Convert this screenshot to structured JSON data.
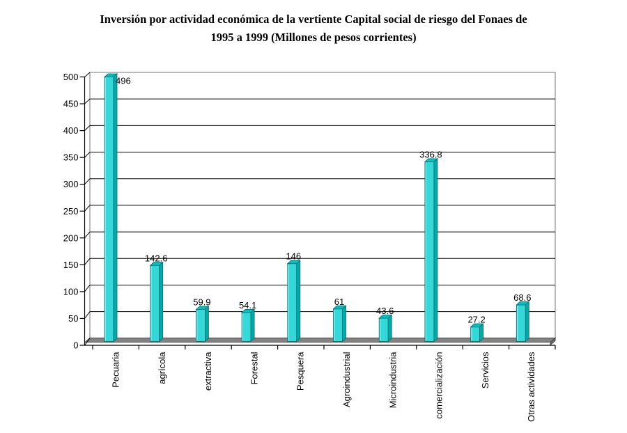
{
  "title": {
    "line1": "Inversión por actividad económica de la vertiente Capital social de riesgo del Fonaes de",
    "line2": "1995 a 1999 (Millones de pesos corrientes)"
  },
  "chart_data": {
    "type": "bar",
    "style": "excel-3d-column",
    "title": "Inversión por actividad económica de la vertiente Capital social de riesgo del Fonaes de 1995 a 1999 (Millones de pesos corrientes)",
    "categories": [
      "Pecuaria",
      "agrícola",
      "extractiva",
      "Forestal",
      "Pesquera",
      "Agroindustrial",
      "Microindustria",
      "comercialización",
      "Servicios",
      "Otras actividades"
    ],
    "values": [
      496,
      142.6,
      59.9,
      54.1,
      146,
      61,
      43.6,
      336.8,
      27.2,
      68.6
    ],
    "value_labels": [
      "496",
      "142.6",
      "59.9",
      "54.1",
      "146",
      "61",
      "43.6",
      "336.8",
      "27.2",
      "68.6"
    ],
    "xlabel": "",
    "ylabel": "",
    "ylim": [
      0,
      500
    ],
    "yticks": [
      0,
      50,
      100,
      150,
      200,
      250,
      300,
      350,
      400,
      450,
      500
    ],
    "grid": true,
    "legend": "none",
    "colors": {
      "bar_front": "#35d8d8",
      "bar_side": "#00abab",
      "bar_top": "#00c2c2",
      "bar_outline": "#0a6a6a",
      "bar_highlight": "#a8f0f0",
      "floor": "#828282",
      "floor_bevel": "#6a6a6a",
      "floor_edge": "#474747",
      "wall_border": "#8c8c8c",
      "gridline": "#000000",
      "axis": "#000000",
      "text": "#000000"
    }
  }
}
